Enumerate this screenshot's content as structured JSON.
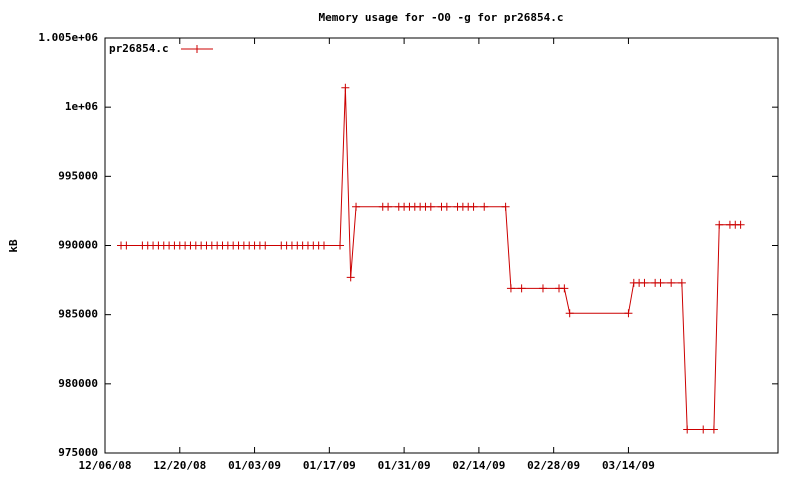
{
  "chart_data": {
    "type": "line",
    "title": "Memory usage for -O0 -g for pr26854.c",
    "y_label": "kB",
    "x": [
      "12/09/08",
      "12/10/08",
      "12/13/08",
      "12/14/08",
      "12/15/08",
      "12/16/08",
      "12/17/08",
      "12/18/08",
      "12/19/08",
      "12/20/08",
      "12/21/08",
      "12/22/08",
      "12/23/08",
      "12/24/08",
      "12/25/08",
      "12/26/08",
      "12/27/08",
      "12/28/08",
      "12/29/08",
      "12/30/08",
      "12/31/08",
      "01/01/09",
      "01/02/09",
      "01/03/09",
      "01/04/09",
      "01/05/09",
      "01/08/09",
      "01/09/09",
      "01/10/09",
      "01/11/09",
      "01/12/09",
      "01/13/09",
      "01/14/09",
      "01/15/09",
      "01/16/09",
      "01/19/09",
      "01/20/09",
      "01/21/09",
      "01/22/09",
      "01/27/09",
      "01/28/09",
      "01/30/09",
      "01/31/09",
      "02/01/09",
      "02/02/09",
      "02/03/09",
      "02/04/09",
      "02/05/09",
      "02/07/09",
      "02/08/09",
      "02/10/09",
      "02/11/09",
      "02/12/09",
      "02/13/09",
      "02/15/09",
      "02/19/09",
      "02/20/09",
      "02/22/09",
      "02/26/09",
      "03/01/09",
      "03/02/09",
      "03/03/09",
      "03/14/09",
      "03/15/09",
      "03/16/09",
      "03/17/09",
      "03/19/09",
      "03/20/09",
      "03/22/09",
      "03/24/09",
      "03/25/09",
      "03/28/09",
      "03/30/09",
      "03/31/09",
      "04/02/09",
      "04/03/09",
      "04/04/09"
    ],
    "series": [
      {
        "name": "pr26854.c",
        "color": "#cc0000",
        "values": [
          990000,
          990000,
          990000,
          990000,
          990000,
          990000,
          990000,
          990000,
          990000,
          990000,
          990000,
          990000,
          990000,
          990000,
          990000,
          990000,
          990000,
          990000,
          990000,
          990000,
          990000,
          990000,
          990000,
          990000,
          990000,
          990000,
          990000,
          990000,
          990000,
          990000,
          990000,
          990000,
          990000,
          990000,
          990000,
          990000,
          1001400,
          987700,
          992800,
          992800,
          992800,
          992800,
          992800,
          992800,
          992800,
          992800,
          992800,
          992800,
          992800,
          992800,
          992800,
          992800,
          992800,
          992800,
          992800,
          992800,
          986900,
          986900,
          986900,
          986900,
          986900,
          985100,
          985100,
          987300,
          987300,
          987300,
          987300,
          987300,
          987300,
          987300,
          976700,
          976700,
          976700,
          991500,
          991500,
          991500,
          991500
        ]
      }
    ],
    "xlim": [
      "12/06/08",
      "04/11/09"
    ],
    "xticks": [
      "12/06/08",
      "12/20/08",
      "01/03/09",
      "01/17/09",
      "01/31/09",
      "02/14/09",
      "02/28/09",
      "03/14/09"
    ],
    "ylim": [
      975000,
      1005000
    ],
    "yticks": [
      975000,
      980000,
      985000,
      990000,
      995000,
      {
        "value": 1000000,
        "label": "1e+06"
      },
      {
        "value": 1005000,
        "label": "1.005e+06"
      }
    ],
    "grid": false,
    "legend": "top-left"
  }
}
